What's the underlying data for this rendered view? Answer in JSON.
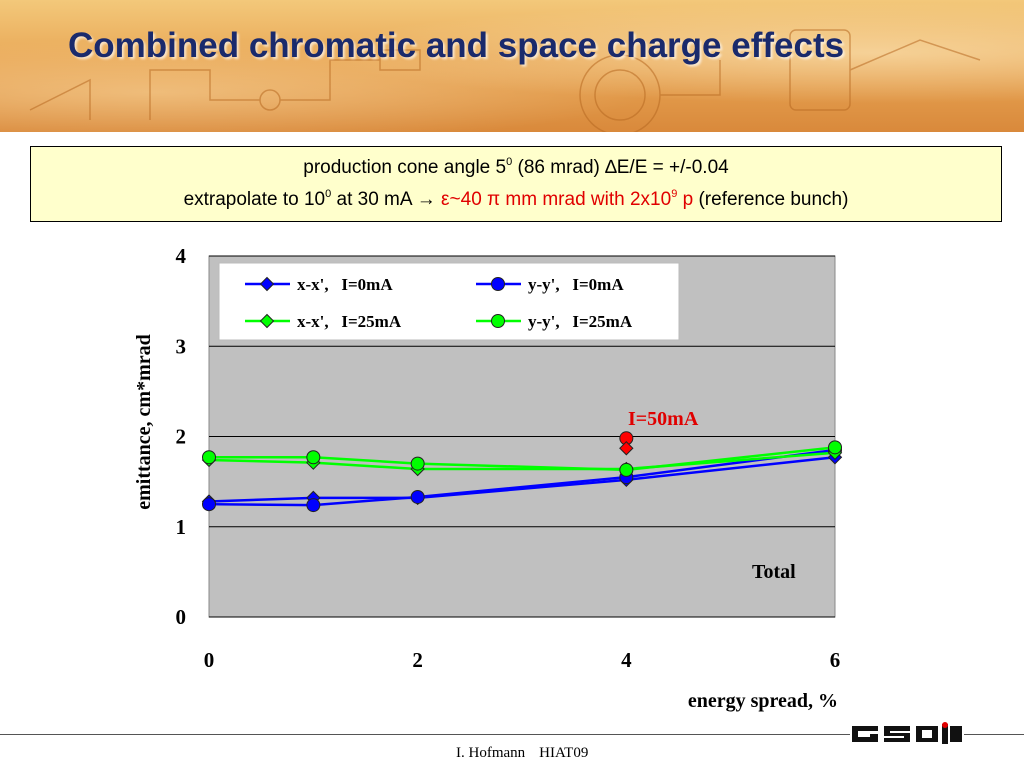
{
  "slide": {
    "title": "Combined chromatic and space charge effects",
    "info_line1": {
      "part_a": "production cone angle 5",
      "sup_a": "0",
      "part_b": " (86 mrad) ∆E/E = +/-0.04"
    },
    "info_line2": {
      "part_a": "extrapolate to 10",
      "sup_a": "0",
      "part_b": " at 30 mA ",
      "arrow": "→",
      "red_a": " ε~40 π mm mrad with 2x10",
      "red_sup": "9",
      "red_b": " p",
      "tail": " (reference bunch)"
    },
    "footer": {
      "author": "I. Hofmann",
      "event": "HIAT09"
    },
    "logo_text": "GSI"
  },
  "colors": {
    "title": "#1a2a6c",
    "info_bg": "#ffffcc",
    "highlight_red": "#e00000",
    "plot_bg": "#c0c0c0",
    "blue": "#0000ff",
    "green": "#00ff00",
    "red_point": "#ff0000"
  },
  "chart_data": {
    "type": "line",
    "ylabel": "emittance, cm*mrad",
    "xlabel": "energy spread, %",
    "xlim": [
      0,
      6
    ],
    "ylim": [
      0,
      4
    ],
    "xticks": [
      "0",
      "2",
      "4",
      "6"
    ],
    "yticks": [
      "0",
      "1",
      "2",
      "3",
      "4"
    ],
    "grid": "horizontal",
    "legend_position": "top-left",
    "annotations": [
      {
        "text": "I=50mA",
        "color": "#e00000"
      },
      {
        "text": "Total",
        "color": "#000000"
      }
    ],
    "series": [
      {
        "name": "x-x',   I=0mA",
        "color": "#0000ff",
        "marker": "diamond",
        "x": [
          0,
          1,
          2,
          4,
          6
        ],
        "y": [
          1.28,
          1.32,
          1.32,
          1.52,
          1.77
        ]
      },
      {
        "name": "y-y',   I=0mA",
        "color": "#0000ff",
        "marker": "circle",
        "x": [
          0,
          1,
          2,
          4,
          6
        ],
        "y": [
          1.25,
          1.24,
          1.33,
          1.55,
          1.85
        ]
      },
      {
        "name": "x-x',   I=25mA",
        "color": "#00ff00",
        "marker": "diamond",
        "x": [
          0,
          1,
          2,
          4,
          6
        ],
        "y": [
          1.74,
          1.71,
          1.64,
          1.64,
          1.82
        ]
      },
      {
        "name": "y-y',   I=25mA",
        "color": "#00ff00",
        "marker": "circle",
        "x": [
          0,
          1,
          2,
          4,
          6
        ],
        "y": [
          1.77,
          1.77,
          1.7,
          1.63,
          1.88
        ]
      }
    ],
    "extra_points": [
      {
        "name": "I=50mA",
        "marker": "circle",
        "color": "#ff0000",
        "x": 4,
        "y": 1.98
      },
      {
        "name": "I=50mA",
        "marker": "diamond",
        "color": "#ff0000",
        "x": 4,
        "y": 1.87
      }
    ]
  }
}
